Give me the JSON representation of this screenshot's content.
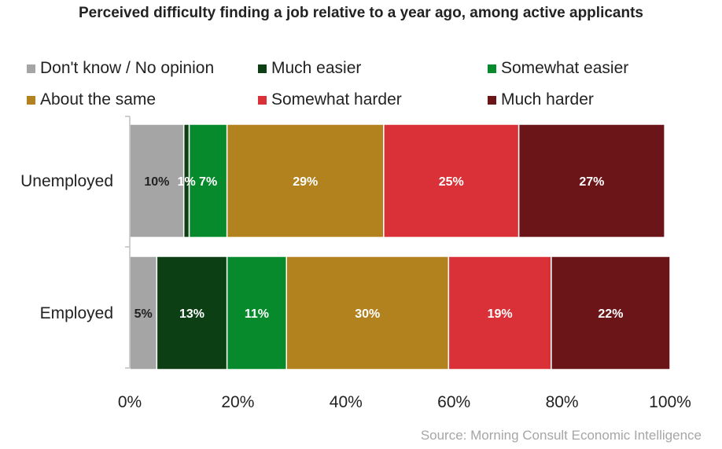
{
  "title": "Perceived difficulty finding a job relative to a year ago, among active applicants",
  "source": "Source: Morning Consult Economic Intelligence",
  "chart_data": {
    "type": "bar",
    "orientation": "horizontal",
    "stacked": true,
    "categories": [
      "Unemployed",
      "Employed"
    ],
    "series": [
      {
        "name": "Don't know / No opinion",
        "color": "#a5a5a5",
        "values": [
          10,
          5
        ],
        "labels": [
          "10%",
          "5%"
        ],
        "label_color": "#222222"
      },
      {
        "name": "Much easier",
        "color": "#0c3f14",
        "values": [
          1,
          13
        ],
        "labels": [
          "1%",
          "13%"
        ],
        "label_color": "#ffffff"
      },
      {
        "name": "Somewhat easier",
        "color": "#078a2c",
        "values": [
          7,
          11
        ],
        "labels": [
          "7%",
          "11%"
        ],
        "label_color": "#ffffff"
      },
      {
        "name": "About the same",
        "color": "#b2821f",
        "values": [
          29,
          30
        ],
        "labels": [
          "29%",
          "30%"
        ],
        "label_color": "#ffffff"
      },
      {
        "name": "Somewhat harder",
        "color": "#d93137",
        "values": [
          25,
          19
        ],
        "labels": [
          "25%",
          "19%"
        ],
        "label_color": "#ffffff"
      },
      {
        "name": "Much harder",
        "color": "#6b1519",
        "values": [
          27,
          22
        ],
        "labels": [
          "27%",
          "22%"
        ],
        "label_color": "#ffffff"
      }
    ],
    "xlim": [
      0,
      100
    ],
    "xticks": [
      "0%",
      "20%",
      "40%",
      "60%",
      "80%",
      "100%"
    ],
    "legend_position": "top",
    "grid": false
  }
}
